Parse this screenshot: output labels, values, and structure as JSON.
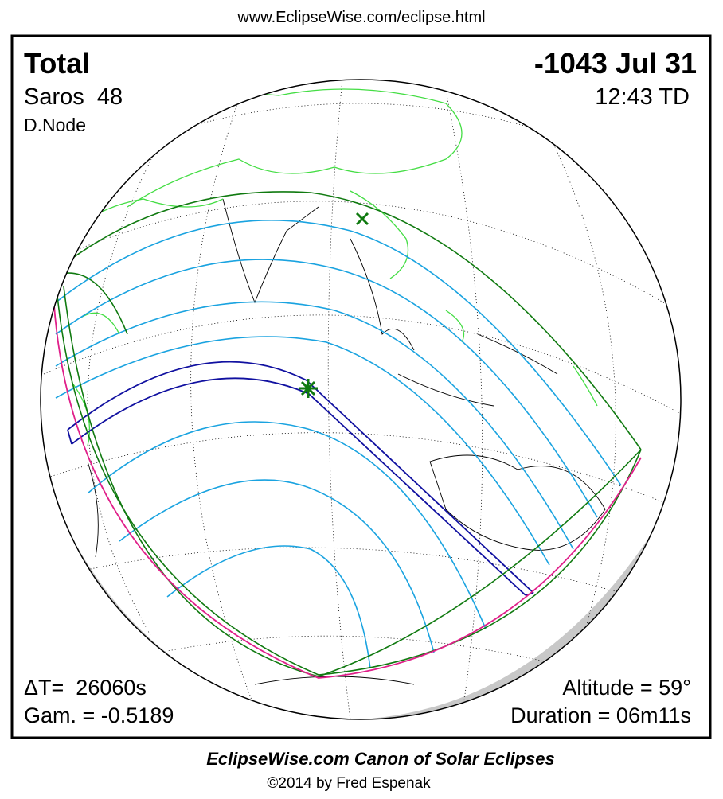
{
  "header": {
    "url": "www.EclipseWise.com/eclipse.html"
  },
  "map": {
    "eclipse_type": "Total",
    "date": "-1043 Jul 31",
    "saros": "Saros  48",
    "time": "12:43 TD",
    "node": "D.Node",
    "delta_t": "ΔT=  26060s",
    "gamma": "Gam. = -0.5189",
    "altitude": "Altitude = 59°",
    "duration": "Duration = 06m11s"
  },
  "footer": {
    "title": "EclipseWise.com Canon of Solar Eclipses",
    "credit": "©2014 by Fred Espenak"
  }
}
